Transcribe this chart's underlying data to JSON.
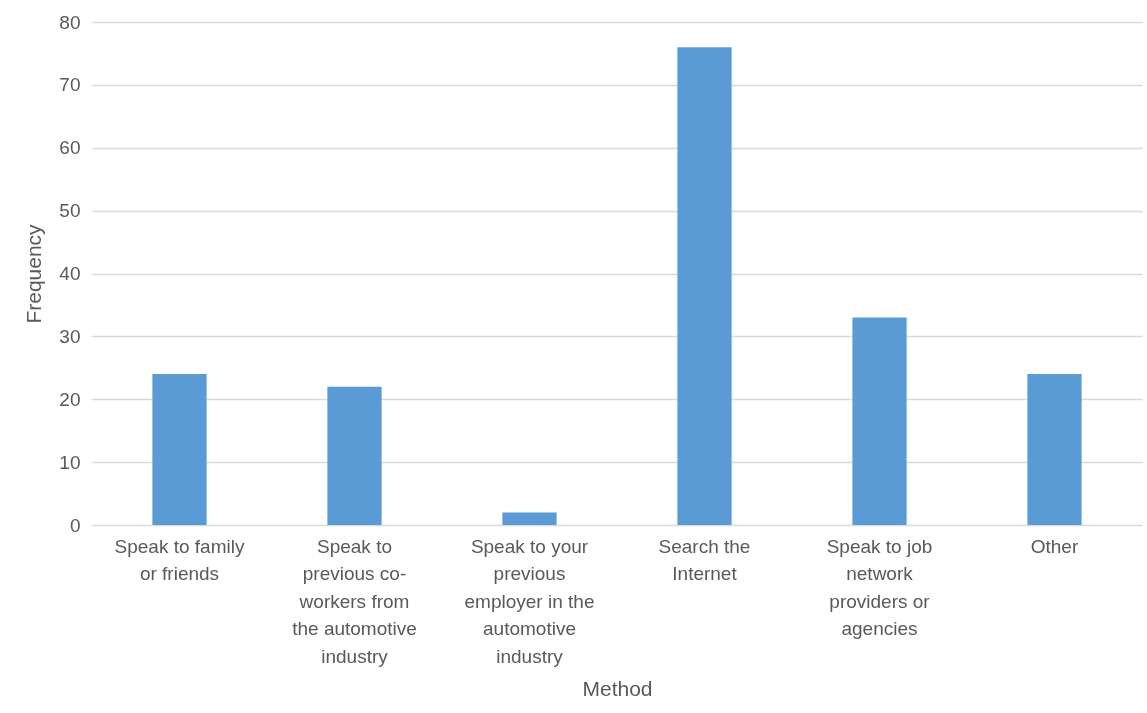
{
  "chart_data": {
    "type": "bar",
    "xlabel": "Method",
    "ylabel": "Frequency",
    "categories": [
      "Speak to family or friends",
      "Speak to previous co-workers from the automotive industry",
      "Speak to your previous employer in the automotive industry",
      "Search the Internet",
      "Speak to job network providers or agencies",
      "Other"
    ],
    "values": [
      24,
      22,
      2,
      76,
      33,
      24
    ],
    "color": "#5b9bd5",
    "ylim": [
      0,
      80
    ],
    "yticks": [
      0,
      10,
      20,
      30,
      40,
      50,
      60,
      70,
      80
    ],
    "grid": true
  }
}
